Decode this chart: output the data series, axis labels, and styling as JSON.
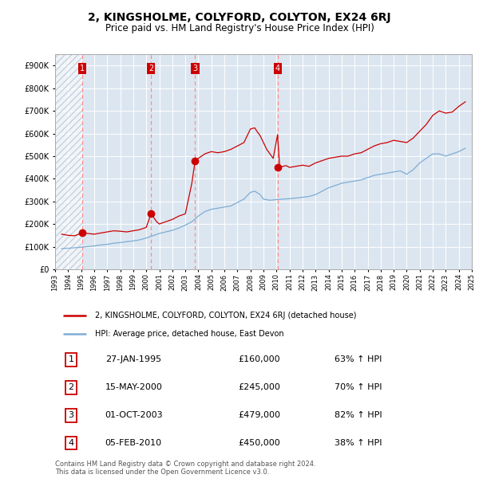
{
  "title": "2, KINGSHOLME, COLYFORD, COLYTON, EX24 6RJ",
  "subtitle": "Price paid vs. HM Land Registry's House Price Index (HPI)",
  "title_fontsize": 10,
  "subtitle_fontsize": 8.5,
  "background_color": "#ffffff",
  "plot_bg_color": "#dce6f1",
  "grid_color": "#ffffff",
  "red_line_color": "#cc0000",
  "blue_line_color": "#7dadd4",
  "sale_marker_color": "#cc0000",
  "vline_color": "#ff8888",
  "label_box_color": "#cc0000",
  "ylim": [
    0,
    950000
  ],
  "yticks": [
    0,
    100000,
    200000,
    300000,
    400000,
    500000,
    600000,
    700000,
    800000,
    900000
  ],
  "ytick_labels": [
    "£0",
    "£100K",
    "£200K",
    "£300K",
    "£400K",
    "£500K",
    "£600K",
    "£700K",
    "£800K",
    "£900K"
  ],
  "xmin_year": 1993,
  "xmax_year": 2025,
  "xtick_years": [
    1993,
    1994,
    1995,
    1996,
    1997,
    1998,
    1999,
    2000,
    2001,
    2002,
    2003,
    2004,
    2005,
    2006,
    2007,
    2008,
    2009,
    2010,
    2011,
    2012,
    2013,
    2014,
    2015,
    2016,
    2017,
    2018,
    2019,
    2020,
    2021,
    2022,
    2023,
    2024,
    2025
  ],
  "hatch_region_end_year": 1995.1,
  "sale_dates_decimal": [
    1995.07,
    2000.37,
    2003.75,
    2010.1
  ],
  "sale_prices": [
    160000,
    245000,
    479000,
    450000
  ],
  "sale_labels": [
    "1",
    "2",
    "3",
    "4"
  ],
  "sale_table": [
    {
      "num": "1",
      "date": "27-JAN-1995",
      "price": "£160,000",
      "info": "63% ↑ HPI"
    },
    {
      "num": "2",
      "date": "15-MAY-2000",
      "price": "£245,000",
      "info": "70% ↑ HPI"
    },
    {
      "num": "3",
      "date": "01-OCT-2003",
      "price": "£479,000",
      "info": "82% ↑ HPI"
    },
    {
      "num": "4",
      "date": "05-FEB-2010",
      "price": "£450,000",
      "info": "38% ↑ HPI"
    }
  ],
  "legend_line1": "2, KINGSHOLME, COLYFORD, COLYTON, EX24 6RJ (detached house)",
  "legend_line2": "HPI: Average price, detached house, East Devon",
  "footer": "Contains HM Land Registry data © Crown copyright and database right 2024.\nThis data is licensed under the Open Government Licence v3.0.",
  "red_series_x": [
    1993.5,
    1994.0,
    1994.5,
    1995.07,
    1995.5,
    1996.0,
    1996.5,
    1997.0,
    1997.5,
    1998.0,
    1998.5,
    1999.0,
    1999.5,
    2000.0,
    2000.37,
    2000.8,
    2001.0,
    2001.5,
    2002.0,
    2002.5,
    2003.0,
    2003.5,
    2003.75,
    2004.0,
    2004.5,
    2005.0,
    2005.5,
    2006.0,
    2006.5,
    2007.0,
    2007.5,
    2008.0,
    2008.33,
    2008.5,
    2008.75,
    2009.0,
    2009.25,
    2009.5,
    2009.75,
    2010.08,
    2010.25,
    2010.5,
    2010.75,
    2011.0,
    2011.5,
    2012.0,
    2012.5,
    2013.0,
    2013.5,
    2014.0,
    2014.5,
    2015.0,
    2015.5,
    2016.0,
    2016.5,
    2017.0,
    2017.5,
    2018.0,
    2018.5,
    2019.0,
    2019.5,
    2020.0,
    2020.5,
    2021.0,
    2021.5,
    2022.0,
    2022.5,
    2023.0,
    2023.5,
    2024.0,
    2024.5
  ],
  "red_series_y": [
    155000,
    150000,
    148000,
    160000,
    158000,
    155000,
    160000,
    165000,
    170000,
    168000,
    165000,
    170000,
    175000,
    185000,
    245000,
    210000,
    200000,
    210000,
    220000,
    235000,
    245000,
    380000,
    479000,
    490000,
    510000,
    520000,
    515000,
    520000,
    530000,
    545000,
    560000,
    620000,
    625000,
    610000,
    590000,
    560000,
    530000,
    510000,
    490000,
    595000,
    450000,
    455000,
    458000,
    450000,
    455000,
    460000,
    455000,
    470000,
    480000,
    490000,
    495000,
    500000,
    500000,
    510000,
    515000,
    530000,
    545000,
    555000,
    560000,
    570000,
    565000,
    560000,
    580000,
    610000,
    640000,
    680000,
    700000,
    690000,
    695000,
    720000,
    740000
  ],
  "blue_series_x": [
    1993.5,
    1994.0,
    1994.5,
    1995.0,
    1995.5,
    1996.0,
    1996.5,
    1997.0,
    1997.5,
    1998.0,
    1998.5,
    1999.0,
    1999.5,
    2000.0,
    2000.5,
    2001.0,
    2001.5,
    2002.0,
    2002.5,
    2003.0,
    2003.5,
    2004.0,
    2004.5,
    2005.0,
    2005.5,
    2006.0,
    2006.5,
    2007.0,
    2007.5,
    2008.0,
    2008.33,
    2008.75,
    2009.0,
    2009.5,
    2010.0,
    2010.5,
    2011.0,
    2011.5,
    2012.0,
    2012.5,
    2013.0,
    2013.5,
    2014.0,
    2014.5,
    2015.0,
    2015.5,
    2016.0,
    2016.5,
    2017.0,
    2017.5,
    2018.0,
    2018.5,
    2019.0,
    2019.5,
    2020.0,
    2020.5,
    2021.0,
    2021.5,
    2022.0,
    2022.5,
    2023.0,
    2023.5,
    2024.0,
    2024.5
  ],
  "blue_series_y": [
    92000,
    93000,
    95000,
    97000,
    100000,
    103000,
    107000,
    110000,
    115000,
    118000,
    122000,
    125000,
    130000,
    138000,
    148000,
    158000,
    165000,
    172000,
    182000,
    195000,
    210000,
    235000,
    255000,
    265000,
    270000,
    275000,
    280000,
    295000,
    310000,
    340000,
    345000,
    330000,
    310000,
    305000,
    308000,
    310000,
    312000,
    315000,
    318000,
    322000,
    330000,
    345000,
    360000,
    370000,
    380000,
    385000,
    390000,
    395000,
    405000,
    415000,
    420000,
    425000,
    430000,
    435000,
    420000,
    440000,
    470000,
    490000,
    510000,
    510000,
    500000,
    510000,
    520000,
    535000
  ]
}
